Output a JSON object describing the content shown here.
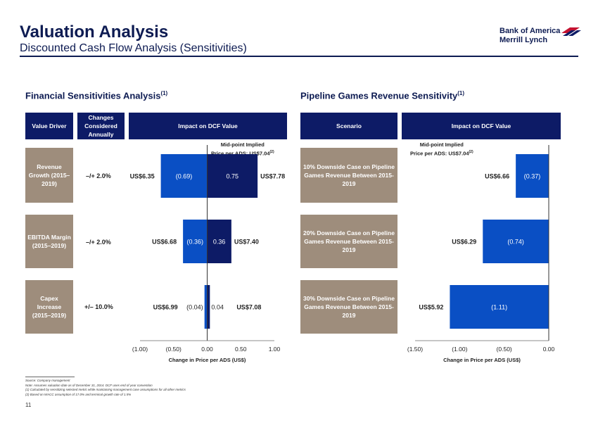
{
  "header": {
    "title": "Valuation Analysis",
    "subtitle": "Discounted Cash Flow Analysis (Sensitivities)",
    "logo_line1": "Bank of America",
    "logo_line2": "Merrill Lynch"
  },
  "colors": {
    "navy": "#0d1b66",
    "taupe": "#9e8d7c",
    "bar_blue": "#0a4fc4",
    "bar_navy": "#0d1b66"
  },
  "left_panel": {
    "title": "Financial Sensitivities Analysis",
    "title_sup": "(1)",
    "headers": {
      "driver": "Value Driver",
      "changes": "Changes Considered Annually",
      "impact": "Impact on DCF Value"
    },
    "midpoint_line1": "Mid-point  Implied",
    "midpoint_line2": "Price per ADS: US$7.04",
    "midpoint_sup": "(2)"
  },
  "right_panel": {
    "title": "Pipeline Games Revenue Sensitivity",
    "title_sup": "(1)",
    "headers": {
      "scenario": "Scenario",
      "impact": "Impact on DCF Value"
    },
    "midpoint_line1": "Mid-point  Implied",
    "midpoint_line2": "Price per ADS: US$7.04",
    "midpoint_sup": "(2)"
  },
  "chart_data": [
    {
      "type": "bar",
      "orientation": "horizontal-tornado",
      "xlabel": "Change in Price per ADS (US$)",
      "xlim": [
        -1.0,
        1.0
      ],
      "ticks": [
        -1.0,
        -0.5,
        0.0,
        0.5,
        1.0
      ],
      "tick_labels": [
        "(1.00)",
        "(0.50)",
        "0.00",
        "0.50",
        "1.00"
      ],
      "rows": [
        {
          "driver": "Revenue Growth (2015–2019)",
          "change": "–/+ 2.0%",
          "neg": -0.69,
          "pos": 0.75,
          "neg_label": "(0.69)",
          "pos_label": "0.75",
          "low_price": "US$6.35",
          "high_price": "US$7.78"
        },
        {
          "driver": "EBITDA Margin (2015–2019)",
          "change": "–/+ 2.0%",
          "neg": -0.36,
          "pos": 0.36,
          "neg_label": "(0.36)",
          "pos_label": "0.36",
          "low_price": "US$6.68",
          "high_price": "US$7.40"
        },
        {
          "driver": "Capex Increase (2015–2019)",
          "change": "+/– 10.0%",
          "neg": -0.04,
          "pos": 0.04,
          "neg_label": "(0.04)",
          "pos_label": "0.04",
          "low_price": "US$6.99",
          "high_price": "US$7.08"
        }
      ]
    },
    {
      "type": "bar",
      "orientation": "horizontal",
      "xlabel": "Change in Price per ADS (US$)",
      "xlim": [
        -1.5,
        0.0
      ],
      "ticks": [
        -1.5,
        -1.0,
        -0.5,
        0.0
      ],
      "tick_labels": [
        "(1.50)",
        "(1.00)",
        "(0.50)",
        "0.00"
      ],
      "rows": [
        {
          "scenario": "10% Downside Case on Pipeline Games Revenue Between 2015-2019",
          "value": -0.37,
          "label": "(0.37)",
          "price": "US$6.66"
        },
        {
          "scenario": "20% Downside Case on Pipeline Games Revenue Between 2015-2019",
          "value": -0.74,
          "label": "(0.74)",
          "price": "US$6.29"
        },
        {
          "scenario": "30% Downside Case on Pipeline Games Revenue Between 2015-2019",
          "value": -1.11,
          "label": "(1.11)",
          "price": "US$5.92"
        }
      ]
    }
  ],
  "footnotes": {
    "source": "Source: Company management",
    "note": "Note: Assumes valuation date as of December 31, 2014. DCF uses end of year convention",
    "fn1": "(1)        Calculated by sensitizing selected metric while maintaining management case assumptions for all other metrics",
    "fn2": "(2)        Based on WACC assumption of 17.0% and terminal growth rate of 1.5%"
  },
  "page_number": "11"
}
